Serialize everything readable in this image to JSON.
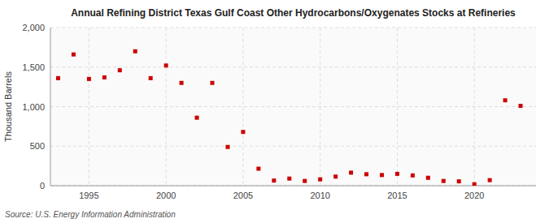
{
  "chart_data": {
    "type": "scatter",
    "title": "Annual Refining District Texas Gulf Coast Other Hydrocarbons/Oxygenates Stocks at Refineries",
    "ylabel": "Thousand Barrels",
    "annotation": "Source: U.S. Energy Information Administration",
    "x": [
      1993,
      1994,
      1995,
      1996,
      1997,
      1998,
      1999,
      2000,
      2001,
      2002,
      2003,
      2004,
      2005,
      2006,
      2007,
      2008,
      2009,
      2010,
      2011,
      2012,
      2013,
      2014,
      2015,
      2016,
      2017,
      2018,
      2019,
      2020,
      2021,
      2022,
      2023
    ],
    "values": [
      1360,
      1660,
      1350,
      1370,
      1460,
      1700,
      1360,
      1520,
      1300,
      860,
      1300,
      490,
      680,
      215,
      65,
      90,
      60,
      80,
      115,
      165,
      145,
      135,
      150,
      130,
      100,
      60,
      55,
      18,
      70,
      1080,
      1010
    ],
    "color": "#cc0000",
    "marker": "square",
    "grid": true,
    "xlim": [
      1992.5,
      2024
    ],
    "xticks": [
      1995,
      2000,
      2005,
      2010,
      2015,
      2020
    ],
    "ylim": [
      0,
      2000
    ],
    "yticks": [
      0,
      500,
      {
        "value": 1000,
        "label": "1,000"
      },
      {
        "value": 1500,
        "label": "1,500"
      },
      {
        "value": 2000,
        "label": "2,000"
      }
    ]
  }
}
